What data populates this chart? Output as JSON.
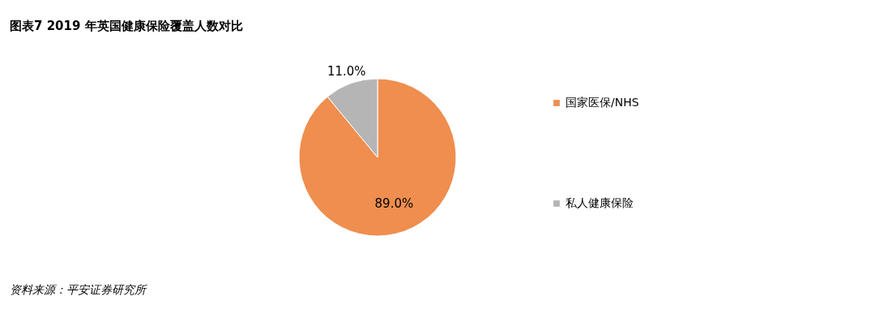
{
  "chart_data": {
    "type": "pie",
    "title": "图表7    2019 年英国健康保险覆盖人数对比",
    "categories": [
      "国家医保/NHS",
      "私人健康保险"
    ],
    "values": [
      89.0,
      11.0
    ],
    "colors": [
      "#ef8e4e",
      "#b5b5b5"
    ],
    "value_labels": [
      "89.0%",
      "11.0%"
    ],
    "legend": "right",
    "annotations": [
      "资料来源：平安证券研究所"
    ]
  }
}
